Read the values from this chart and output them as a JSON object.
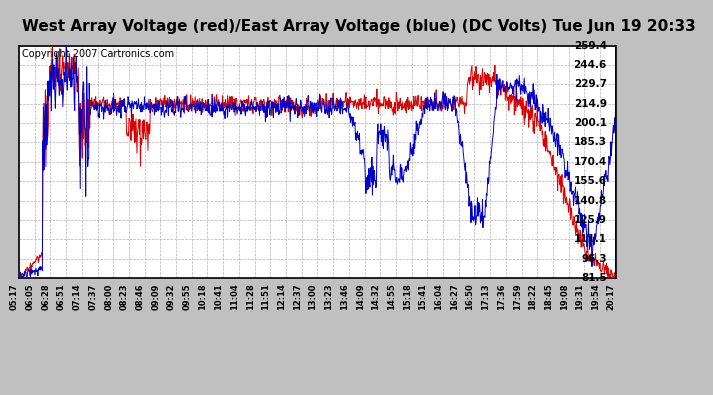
{
  "title": "West Array Voltage (red)/East Array Voltage (blue) (DC Volts) Tue Jun 19 20:33",
  "copyright": "Copyright 2007 Cartronics.com",
  "ylabel_values": [
    259.4,
    244.6,
    229.7,
    214.9,
    200.1,
    185.3,
    170.4,
    155.6,
    140.8,
    125.9,
    111.1,
    96.3,
    81.5
  ],
  "ymin": 81.5,
  "ymax": 259.4,
  "x_labels": [
    "05:17",
    "06:05",
    "06:28",
    "06:51",
    "07:14",
    "07:37",
    "08:00",
    "08:23",
    "08:46",
    "09:09",
    "09:32",
    "09:55",
    "10:18",
    "10:41",
    "11:04",
    "11:28",
    "11:51",
    "12:14",
    "12:37",
    "13:00",
    "13:23",
    "13:46",
    "14:09",
    "14:32",
    "14:55",
    "15:18",
    "15:41",
    "16:04",
    "16:27",
    "16:50",
    "17:13",
    "17:36",
    "17:59",
    "18:22",
    "18:45",
    "19:08",
    "19:31",
    "19:54",
    "20:17"
  ],
  "background_color": "#c0c0c0",
  "plot_bg_color": "#ffffff",
  "grid_color": "#b0b0b0",
  "title_fontsize": 11,
  "west_color": "#dd0000",
  "east_color": "#0000cc",
  "copyright_fontsize": 7
}
